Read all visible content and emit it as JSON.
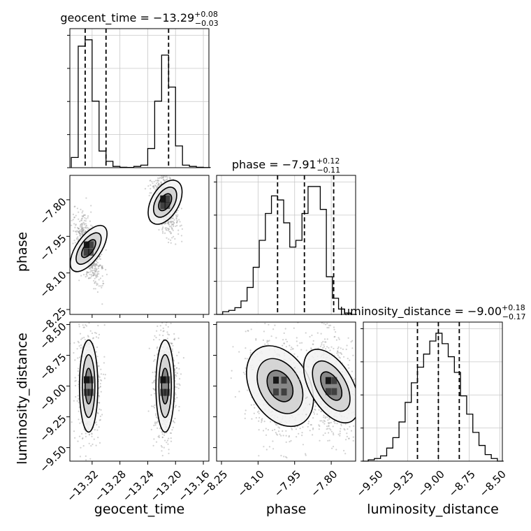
{
  "chart_data": {
    "type": "corner",
    "parameters": [
      "geocent_time",
      "phase",
      "luminosity_distance"
    ],
    "titles": [
      {
        "param": "geocent_time",
        "median": "−13.29",
        "plus": "+0.08",
        "minus": "−0.03"
      },
      {
        "param": "phase",
        "median": "−7.91",
        "plus": "+0.12",
        "minus": "−0.11"
      },
      {
        "param": "luminosity_distance",
        "median": "−9.00",
        "plus": "+0.18",
        "minus": "−0.17"
      }
    ],
    "axes": {
      "geocent_time": {
        "range": [
          -13.352,
          -13.152
        ],
        "ticks": [
          -13.32,
          -13.28,
          -13.24,
          -13.2,
          -13.16
        ],
        "tick_labels": [
          "−13.32",
          "−13.28",
          "−13.24",
          "−13.20",
          "−13.16"
        ]
      },
      "phase": {
        "range": [
          -8.27,
          -7.7
        ],
        "ticks": [
          -8.25,
          -8.1,
          -7.95,
          -7.8
        ],
        "tick_labels": [
          "−8.25",
          "−8.10",
          "−7.95",
          "−7.80"
        ]
      },
      "luminosity_distance": {
        "range": [
          -9.61,
          -8.48
        ],
        "ticks": [
          -9.5,
          -9.25,
          -9.0,
          -8.75,
          -8.5
        ],
        "tick_labels": [
          "−9.50",
          "−9.25",
          "−9.00",
          "−8.75",
          "−8.50"
        ]
      }
    },
    "histograms": {
      "geocent_time": {
        "bin_edges": [
          -13.35,
          -13.34,
          -13.33,
          -13.32,
          -13.31,
          -13.3,
          -13.29,
          -13.28,
          -13.27,
          -13.26,
          -13.25,
          -13.24,
          -13.23,
          -13.22,
          -13.21,
          -13.2,
          -13.19,
          -13.18,
          -13.17,
          -13.16,
          -13.15
        ],
        "counts": [
          0.08,
          0.95,
          1.0,
          0.52,
          0.13,
          0.05,
          0.01,
          0.003,
          0.002,
          0.01,
          0.02,
          0.15,
          0.52,
          0.88,
          0.63,
          0.17,
          0.02,
          0.01,
          0.003,
          0.001
        ],
        "quantiles": [
          -13.33,
          -13.3,
          -13.21
        ]
      },
      "phase": {
        "bin_edges": [
          -8.27,
          -8.245,
          -8.22,
          -8.195,
          -8.17,
          -8.145,
          -8.12,
          -8.095,
          -8.07,
          -8.045,
          -8.02,
          -7.995,
          -7.97,
          -7.945,
          -7.92,
          -7.895,
          -7.87,
          -7.845,
          -7.82,
          -7.795,
          -7.77,
          -7.745,
          -7.72,
          -7.695
        ],
        "counts": [
          0.0,
          0.02,
          0.03,
          0.05,
          0.1,
          0.2,
          0.35,
          0.55,
          0.75,
          0.88,
          0.85,
          0.68,
          0.5,
          0.55,
          0.75,
          0.95,
          0.95,
          0.78,
          0.28,
          0.12,
          0.04,
          0.01,
          0.0
        ],
        "quantiles": [
          -8.02,
          -7.91,
          -7.79
        ]
      },
      "luminosity_distance": {
        "bin_edges": [
          -9.62,
          -9.57,
          -9.52,
          -9.47,
          -9.42,
          -9.37,
          -9.32,
          -9.27,
          -9.22,
          -9.17,
          -9.12,
          -9.07,
          -9.02,
          -8.97,
          -8.92,
          -8.87,
          -8.82,
          -8.77,
          -8.72,
          -8.67,
          -8.62,
          -8.57,
          -8.52,
          -8.47
        ],
        "counts": [
          0.0,
          0.01,
          0.02,
          0.04,
          0.1,
          0.18,
          0.3,
          0.45,
          0.6,
          0.72,
          0.82,
          0.92,
          0.98,
          0.9,
          0.8,
          0.68,
          0.5,
          0.36,
          0.22,
          0.12,
          0.05,
          0.02,
          0.0
        ],
        "quantiles": [
          -9.17,
          -9.0,
          -8.83
        ]
      }
    },
    "clusters": [
      {
        "panel": "phase_vs_geocent_time",
        "center": [
          -13.325,
          -8.0
        ],
        "spread": [
          0.008,
          0.05
        ],
        "rotation": -55,
        "weight": 1.0
      },
      {
        "panel": "phase_vs_geocent_time",
        "center": [
          -13.215,
          -7.81
        ],
        "spread": [
          0.009,
          0.045
        ],
        "rotation": -60,
        "weight": 1.0
      },
      {
        "panel": "luminosity_distance_vs_geocent_time",
        "center": [
          -13.325,
          -9.0
        ],
        "spread": [
          0.006,
          0.17
        ],
        "rotation": 0,
        "weight": 1.0
      },
      {
        "panel": "luminosity_distance_vs_geocent_time",
        "center": [
          -13.215,
          -9.0
        ],
        "spread": [
          0.006,
          0.17
        ],
        "rotation": 0,
        "weight": 1.0
      },
      {
        "panel": "luminosity_distance_vs_phase",
        "center": [
          -8.01,
          -9.0
        ],
        "spread": [
          0.055,
          0.16
        ],
        "rotation": -30,
        "weight": 1.0
      },
      {
        "panel": "luminosity_distance_vs_phase",
        "center": [
          -7.8,
          -9.0
        ],
        "spread": [
          0.04,
          0.15
        ],
        "rotation": -30,
        "weight": 1.0
      }
    ],
    "grid": true,
    "legend": "none"
  }
}
